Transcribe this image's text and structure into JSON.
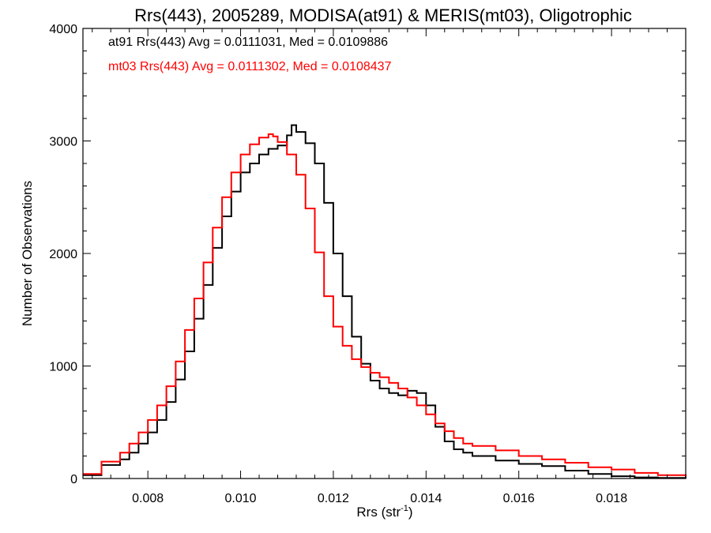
{
  "chart_data": {
    "type": "line",
    "step": true,
    "title": "Rrs(443), 2005289, MODISA(at91) & MERIS(mt03), Oligotrophic",
    "xlabel_main": "Rrs (str",
    "xlabel_sup": "-1",
    "xlabel_end": ")",
    "ylabel": "Number of Observations",
    "xlim": [
      0.0066,
      0.0196
    ],
    "ylim": [
      0,
      4000
    ],
    "x_ticks": [
      0.008,
      0.01,
      0.012,
      0.014,
      0.016,
      0.018
    ],
    "x_tick_labels": [
      "0.008",
      "0.010",
      "0.012",
      "0.014",
      "0.016",
      "0.018"
    ],
    "y_ticks": [
      0,
      1000,
      2000,
      3000,
      4000
    ],
    "y_tick_labels": [
      "0",
      "1000",
      "2000",
      "3000",
      "4000"
    ],
    "grid": false,
    "legend_position": "top-left",
    "series": [
      {
        "name": "at91",
        "legend_text": "at91 Rrs(443) Avg = 0.0111031, Med = 0.0109886",
        "color": "#000000",
        "x": [
          0.0066,
          0.007,
          0.0074,
          0.0076,
          0.0078,
          0.008,
          0.0082,
          0.0084,
          0.0086,
          0.0088,
          0.009,
          0.0092,
          0.0094,
          0.0096,
          0.0098,
          0.01,
          0.0102,
          0.0104,
          0.0106,
          0.0108,
          0.011,
          0.0111,
          0.0112,
          0.0114,
          0.0116,
          0.0118,
          0.012,
          0.0122,
          0.0124,
          0.0126,
          0.0128,
          0.013,
          0.0132,
          0.0134,
          0.0136,
          0.0138,
          0.014,
          0.0142,
          0.0144,
          0.0146,
          0.0148,
          0.015,
          0.0155,
          0.016,
          0.0165,
          0.017,
          0.0175,
          0.018,
          0.0185,
          0.019,
          0.0196
        ],
        "y": [
          30,
          120,
          170,
          230,
          310,
          410,
          520,
          680,
          880,
          1130,
          1420,
          1720,
          2050,
          2330,
          2550,
          2720,
          2800,
          2880,
          2930,
          2960,
          3050,
          3140,
          3080,
          2980,
          2800,
          2450,
          2000,
          1620,
          1260,
          1020,
          870,
          800,
          760,
          740,
          780,
          760,
          650,
          460,
          330,
          260,
          230,
          200,
          160,
          130,
          110,
          70,
          40,
          20,
          10,
          5,
          0
        ]
      },
      {
        "name": "mt03",
        "legend_text": "mt03 Rrs(443) Avg = 0.0111302, Med = 0.0108437",
        "color": "#ff0000",
        "x": [
          0.0066,
          0.007,
          0.0074,
          0.0076,
          0.0078,
          0.008,
          0.0082,
          0.0084,
          0.0086,
          0.0088,
          0.009,
          0.0092,
          0.0094,
          0.0096,
          0.0098,
          0.01,
          0.0102,
          0.0104,
          0.0106,
          0.0107,
          0.0108,
          0.011,
          0.0112,
          0.0114,
          0.0116,
          0.0118,
          0.012,
          0.0122,
          0.0124,
          0.0126,
          0.0128,
          0.013,
          0.0132,
          0.0134,
          0.0136,
          0.0138,
          0.014,
          0.0142,
          0.0144,
          0.0146,
          0.0148,
          0.015,
          0.0155,
          0.016,
          0.0165,
          0.017,
          0.0175,
          0.018,
          0.0185,
          0.019,
          0.0196
        ],
        "y": [
          40,
          150,
          230,
          310,
          410,
          520,
          650,
          820,
          1040,
          1320,
          1600,
          1920,
          2230,
          2500,
          2720,
          2880,
          2970,
          3030,
          3060,
          3040,
          2990,
          2880,
          2700,
          2400,
          2010,
          1620,
          1350,
          1180,
          1060,
          990,
          940,
          900,
          850,
          800,
          720,
          650,
          570,
          490,
          420,
          360,
          310,
          290,
          250,
          200,
          170,
          140,
          100,
          80,
          50,
          30,
          15
        ]
      }
    ]
  }
}
